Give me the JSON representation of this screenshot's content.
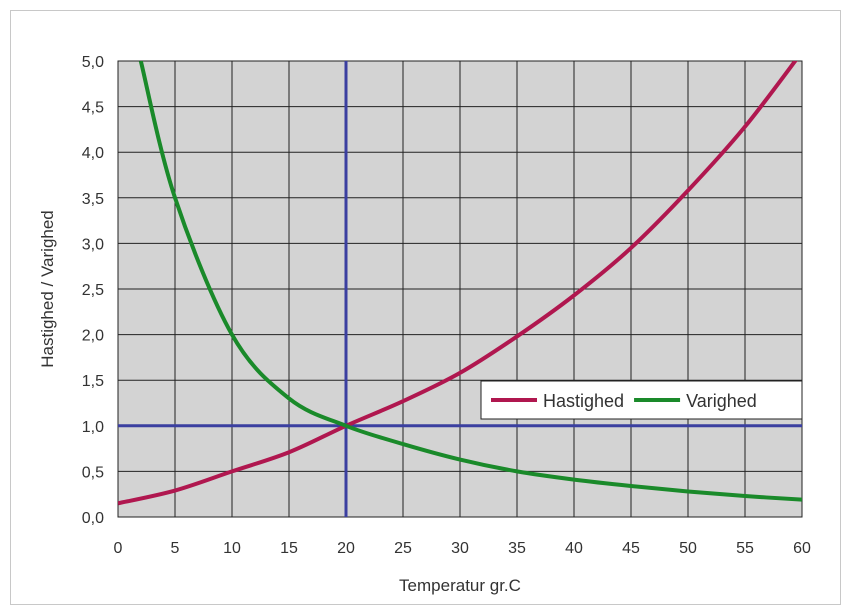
{
  "chart_data": {
    "type": "line",
    "xlabel": "Temperatur gr.C",
    "ylabel": "Hastighed / Varighed",
    "xlim": [
      0,
      60
    ],
    "ylim": [
      0,
      5
    ],
    "x_ticks": [
      "0",
      "5",
      "10",
      "15",
      "20",
      "25",
      "30",
      "35",
      "40",
      "45",
      "50",
      "55",
      "60"
    ],
    "y_ticks": [
      "0,0",
      "0,5",
      "1,0",
      "1,5",
      "2,0",
      "2,5",
      "3,0",
      "3,5",
      "4,0",
      "4,5",
      "5,0"
    ],
    "grid": true,
    "plot_background": "#d3d3d3",
    "legend_position": "right, just above y=1.0",
    "reference_lines": {
      "x": 20,
      "y": 1.0,
      "color": "#3b3fa0"
    },
    "series": [
      {
        "name": "Hastighed",
        "color": "#b0174f",
        "x": [
          0,
          5,
          10,
          15,
          20,
          25,
          30,
          35,
          40,
          45,
          50,
          55,
          60
        ],
        "y": [
          0.15,
          0.29,
          0.5,
          0.71,
          1.0,
          1.27,
          1.58,
          1.98,
          2.43,
          2.95,
          3.58,
          4.28,
          5.1
        ]
      },
      {
        "name": "Varighed",
        "color": "#1a8a2a",
        "x": [
          2,
          5,
          10,
          15,
          20,
          25,
          30,
          35,
          40,
          45,
          50,
          55,
          60
        ],
        "y": [
          5.0,
          3.5,
          2.0,
          1.3,
          1.0,
          0.8,
          0.63,
          0.5,
          0.41,
          0.34,
          0.28,
          0.23,
          0.19
        ]
      }
    ]
  }
}
